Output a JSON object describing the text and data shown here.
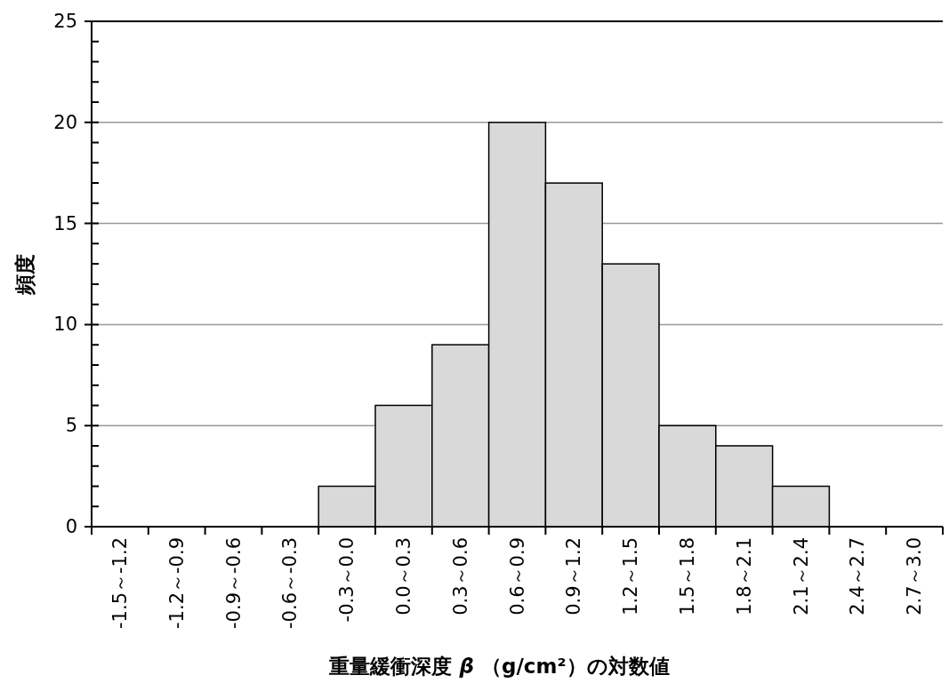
{
  "chart_data": {
    "type": "bar",
    "xlabel": "重量緩衝深度 β （g/cm²）の対数値",
    "ylabel": "頻度",
    "categories": [
      "-1.5～-1.2",
      "-1.2～-0.9",
      "-0.9～-0.6",
      "-0.6～-0.3",
      "-0.3～0.0",
      "0.0～0.3",
      "0.3～0.6",
      "0.6～0.9",
      "0.9～1.2",
      "1.2～1.5",
      "1.5～1.8",
      "1.8～2.1",
      "2.1～2.4",
      "2.4～2.7",
      "2.7～3.0"
    ],
    "values": [
      0,
      0,
      0,
      0,
      2,
      6,
      9,
      20,
      17,
      13,
      5,
      4,
      2,
      0,
      0
    ],
    "color": "#d9d9d9",
    "ylim": [
      0,
      25
    ],
    "yticks": [
      0,
      {
        "value": 1,
        "label": null
      },
      {
        "value": 2,
        "label": null
      },
      {
        "value": 3,
        "label": null
      },
      {
        "value": 4,
        "label": null
      },
      5,
      {
        "value": 6,
        "label": null
      },
      {
        "value": 7,
        "label": null
      },
      {
        "value": 8,
        "label": null
      },
      {
        "value": 9,
        "label": null
      },
      10,
      {
        "value": 11,
        "label": null
      },
      {
        "value": 12,
        "label": null
      },
      {
        "value": 13,
        "label": null
      },
      {
        "value": 14,
        "label": null
      },
      15,
      {
        "value": 16,
        "label": null
      },
      {
        "value": 17,
        "label": null
      },
      {
        "value": 18,
        "label": null
      },
      {
        "value": 19,
        "label": null
      },
      20,
      {
        "value": 21,
        "label": null
      },
      {
        "value": 22,
        "label": null
      },
      {
        "value": 23,
        "label": null
      },
      {
        "value": 24,
        "label": null
      },
      25
    ],
    "grid": "y"
  }
}
